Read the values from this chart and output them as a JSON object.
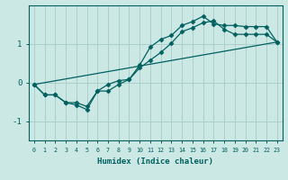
{
  "xlabel": "Humidex (Indice chaleur)",
  "ylabel": "",
  "background_color": "#cce8e4",
  "grid_color": "#aad0cc",
  "line_color": "#006060",
  "xlim": [
    -0.5,
    23.5
  ],
  "ylim": [
    -1.5,
    2.0
  ],
  "yticks": [
    -1,
    0,
    1
  ],
  "xticks": [
    0,
    1,
    2,
    3,
    4,
    5,
    6,
    7,
    8,
    9,
    10,
    11,
    12,
    13,
    14,
    15,
    16,
    17,
    18,
    19,
    20,
    21,
    22,
    23
  ],
  "series1_x": [
    0,
    1,
    2,
    3,
    4,
    5,
    6,
    7,
    8,
    9,
    10,
    11,
    12,
    13,
    14,
    15,
    16,
    17,
    18,
    19,
    20,
    21,
    22,
    23
  ],
  "series1_y": [
    -0.05,
    -0.32,
    -0.32,
    -0.52,
    -0.52,
    -0.62,
    -0.22,
    -0.22,
    -0.05,
    0.08,
    0.45,
    0.92,
    1.12,
    1.22,
    1.48,
    1.58,
    1.72,
    1.52,
    1.48,
    1.48,
    1.45,
    1.45,
    1.45,
    1.05
  ],
  "series2_x": [
    0,
    1,
    2,
    3,
    4,
    5,
    6,
    7,
    8,
    9,
    10,
    11,
    12,
    13,
    14,
    15,
    16,
    17,
    18,
    19,
    20,
    21,
    22,
    23
  ],
  "series2_y": [
    -0.05,
    -0.32,
    -0.32,
    -0.52,
    -0.58,
    -0.7,
    -0.22,
    -0.05,
    0.05,
    0.08,
    0.38,
    0.58,
    0.78,
    1.02,
    1.32,
    1.42,
    1.55,
    1.6,
    1.38,
    1.25,
    1.25,
    1.25,
    1.25,
    1.05
  ],
  "series3_x": [
    0,
    23
  ],
  "series3_y": [
    -0.05,
    1.05
  ]
}
